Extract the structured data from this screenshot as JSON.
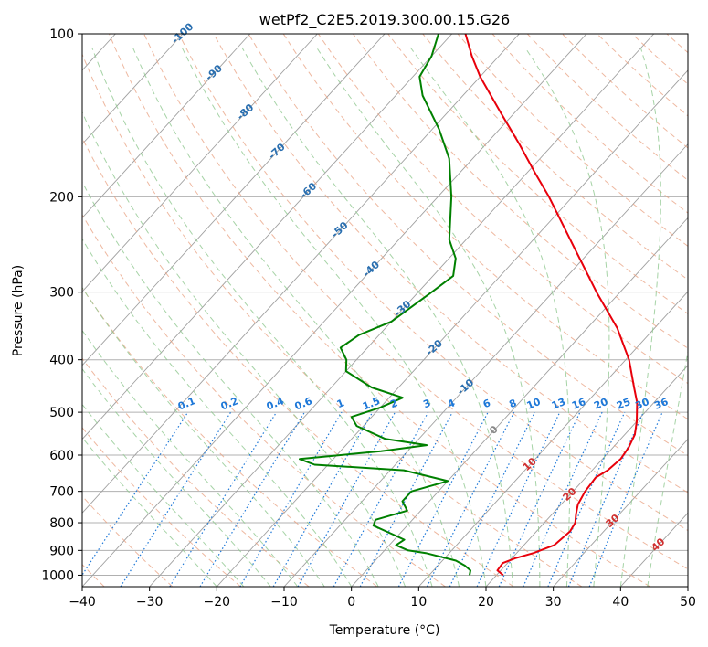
{
  "chart_data": {
    "type": "line",
    "title": "wetPf2_C2E5.2019.300.00.15.G26",
    "xlabel": "Temperature (°C)",
    "ylabel": "Pressure (hPa)",
    "xlim": [
      -40,
      50
    ],
    "ylim": [
      1050,
      100
    ],
    "y_scale": "log",
    "skew": true,
    "grid": true,
    "x_ticks": [
      "−40",
      "−30",
      "−20",
      "−10",
      "0",
      "10",
      "20",
      "30",
      "40",
      "50"
    ],
    "y_ticks": [
      "1000",
      "900",
      "800",
      "700",
      "600",
      "500",
      "400",
      "300",
      "200",
      "100"
    ],
    "colors": {
      "temperature": "#e8000b",
      "dewpoint": "#008000",
      "dry_adiabat": "#e8a080",
      "moist_adiabat": "#90c890",
      "mixing_ratio": "#1e78d8",
      "isotherm": "#a0a0a0",
      "isobar": "#b0b0b0"
    },
    "series": [
      {
        "key": "temperature",
        "points": [
          {
            "p": 1000,
            "t": 21.0
          },
          {
            "p": 980,
            "t": 19.5
          },
          {
            "p": 950,
            "t": 19.3
          },
          {
            "p": 930,
            "t": 20.5
          },
          {
            "p": 910,
            "t": 22.5
          },
          {
            "p": 880,
            "t": 24.5
          },
          {
            "p": 860,
            "t": 24.7
          },
          {
            "p": 830,
            "t": 25.0
          },
          {
            "p": 800,
            "t": 24.6
          },
          {
            "p": 770,
            "t": 23.5
          },
          {
            "p": 740,
            "t": 22.5
          },
          {
            "p": 700,
            "t": 21.8
          },
          {
            "p": 660,
            "t": 21.5
          },
          {
            "p": 640,
            "t": 22.3
          },
          {
            "p": 610,
            "t": 22.7
          },
          {
            "p": 580,
            "t": 22.3
          },
          {
            "p": 550,
            "t": 21.5
          },
          {
            "p": 520,
            "t": 20.0
          },
          {
            "p": 480,
            "t": 17.5
          },
          {
            "p": 450,
            "t": 15.0
          },
          {
            "p": 400,
            "t": 10.5
          },
          {
            "p": 350,
            "t": 4.5
          },
          {
            "p": 300,
            "t": -3.5
          },
          {
            "p": 250,
            "t": -12.5
          },
          {
            "p": 200,
            "t": -23.5
          },
          {
            "p": 180,
            "t": -29.0
          },
          {
            "p": 160,
            "t": -35.0
          },
          {
            "p": 140,
            "t": -42.0
          },
          {
            "p": 120,
            "t": -50.0
          },
          {
            "p": 110,
            "t": -54.0
          },
          {
            "p": 100,
            "t": -58.0
          }
        ]
      },
      {
        "key": "dewpoint",
        "points": [
          {
            "p": 1000,
            "t": 16.0
          },
          {
            "p": 980,
            "t": 15.5
          },
          {
            "p": 960,
            "t": 14.0
          },
          {
            "p": 940,
            "t": 12.0
          },
          {
            "p": 910,
            "t": 6.5
          },
          {
            "p": 900,
            "t": 3.5
          },
          {
            "p": 880,
            "t": 1.0
          },
          {
            "p": 860,
            "t": 1.5
          },
          {
            "p": 840,
            "t": -1.0
          },
          {
            "p": 810,
            "t": -5.0
          },
          {
            "p": 790,
            "t": -5.5
          },
          {
            "p": 760,
            "t": -2.0
          },
          {
            "p": 730,
            "t": -4.0
          },
          {
            "p": 700,
            "t": -4.0
          },
          {
            "p": 670,
            "t": 0.0
          },
          {
            "p": 640,
            "t": -8.0
          },
          {
            "p": 625,
            "t": -22.0
          },
          {
            "p": 610,
            "t": -25.0
          },
          {
            "p": 590,
            "t": -14.0
          },
          {
            "p": 575,
            "t": -8.0
          },
          {
            "p": 560,
            "t": -15.0
          },
          {
            "p": 530,
            "t": -21.0
          },
          {
            "p": 510,
            "t": -23.0
          },
          {
            "p": 490,
            "t": -20.0
          },
          {
            "p": 470,
            "t": -18.0
          },
          {
            "p": 450,
            "t": -24.0
          },
          {
            "p": 420,
            "t": -30.0
          },
          {
            "p": 400,
            "t": -31.5
          },
          {
            "p": 380,
            "t": -34.0
          },
          {
            "p": 360,
            "t": -33.0
          },
          {
            "p": 340,
            "t": -30.0
          },
          {
            "p": 300,
            "t": -28.0
          },
          {
            "p": 280,
            "t": -27.0
          },
          {
            "p": 260,
            "t": -29.0
          },
          {
            "p": 240,
            "t": -32.5
          },
          {
            "p": 200,
            "t": -38.0
          },
          {
            "p": 170,
            "t": -43.5
          },
          {
            "p": 150,
            "t": -49.0
          },
          {
            "p": 130,
            "t": -56.0
          },
          {
            "p": 120,
            "t": -59.0
          },
          {
            "p": 110,
            "t": -60.0
          },
          {
            "p": 100,
            "t": -62.0
          }
        ]
      }
    ],
    "isotherm_labels": [
      {
        "text": "-100",
        "t": -100
      },
      {
        "text": "-90",
        "t": -90
      },
      {
        "text": "-80",
        "t": -80
      },
      {
        "text": "-70",
        "t": -70
      },
      {
        "text": "-60",
        "t": -60
      },
      {
        "text": "-50",
        "t": -50
      },
      {
        "text": "-40",
        "t": -40
      },
      {
        "text": "-30",
        "t": -30
      },
      {
        "text": "-20",
        "t": -20
      },
      {
        "text": "-10",
        "t": -10
      },
      {
        "text": "0",
        "t": 0
      },
      {
        "text": "10",
        "t": 10
      },
      {
        "text": "20",
        "t": 20
      },
      {
        "text": "30",
        "t": 30
      },
      {
        "text": "40",
        "t": 40
      }
    ],
    "mixing_ratio_labels": [
      "0.1",
      "0.2",
      "0.4",
      "0.6",
      "1",
      "1.5",
      "2",
      "3",
      "4",
      "6",
      "8",
      "10",
      "13",
      "16",
      "20",
      "25",
      "30",
      "36"
    ],
    "mixing_ratio_values": [
      0.1,
      0.2,
      0.4,
      0.6,
      1,
      1.5,
      2,
      3,
      4,
      6,
      8,
      10,
      13,
      16,
      20,
      25,
      30,
      36
    ]
  }
}
